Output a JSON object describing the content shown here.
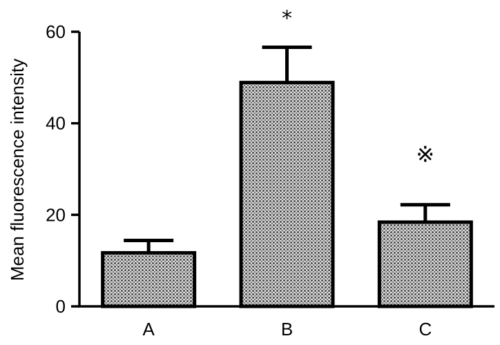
{
  "chart_data": {
    "type": "bar",
    "title": "",
    "xlabel": "",
    "ylabel": "Mean fluorescence intensity",
    "ylim": [
      0,
      60
    ],
    "yticks": [
      0,
      20,
      40,
      60
    ],
    "grid": false,
    "categories": [
      "A",
      "B",
      "C"
    ],
    "values": [
      11.7,
      48.9,
      18.4
    ],
    "error_upper": [
      14.4,
      56.6,
      22.2
    ],
    "annotations": [
      "",
      "*",
      "※"
    ],
    "bar_fill": "#9a9a9a"
  }
}
